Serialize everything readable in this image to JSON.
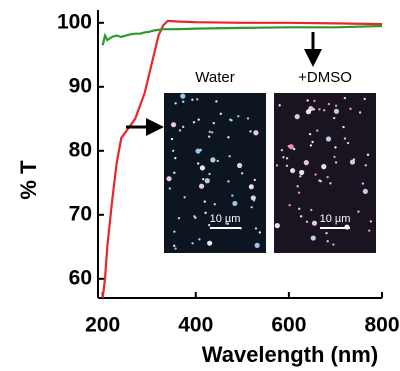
{
  "chart_data": {
    "type": "line",
    "xlabel": "Wavelength (nm)",
    "ylabel": "% T",
    "x": [
      200,
      205,
      210,
      220,
      230,
      240,
      250,
      260,
      270,
      280,
      290,
      300,
      310,
      320,
      330,
      340,
      360,
      400,
      500,
      600,
      700,
      800
    ],
    "series": [
      {
        "color": "#e8262b",
        "values": [
          57,
          60,
          65,
          72,
          78,
          82,
          83,
          84,
          85,
          87,
          89,
          92,
          95,
          98,
          99.6,
          100.3,
          100.2,
          100.1,
          100,
          100,
          99.9,
          99.8
        ]
      },
      {
        "color": "#2e9a2a",
        "values": [
          96.5,
          98,
          97.3,
          97.8,
          98,
          97.8,
          98,
          98.2,
          98.3,
          98.3,
          98.5,
          98.6,
          98.8,
          98.9,
          99,
          99,
          99,
          99.1,
          99.2,
          99.3,
          99.3,
          99.5
        ]
      }
    ],
    "xlim": [
      190,
      800
    ],
    "ylim": [
      57,
      102
    ],
    "xticks": [
      200,
      400,
      600,
      800
    ],
    "yticks": [
      60,
      70,
      80,
      90,
      100
    ],
    "insets": [
      {
        "label": "Water",
        "scale_bar": "10 µm"
      },
      {
        "label": "+DMSO",
        "scale_bar": "10 µm"
      }
    ]
  }
}
